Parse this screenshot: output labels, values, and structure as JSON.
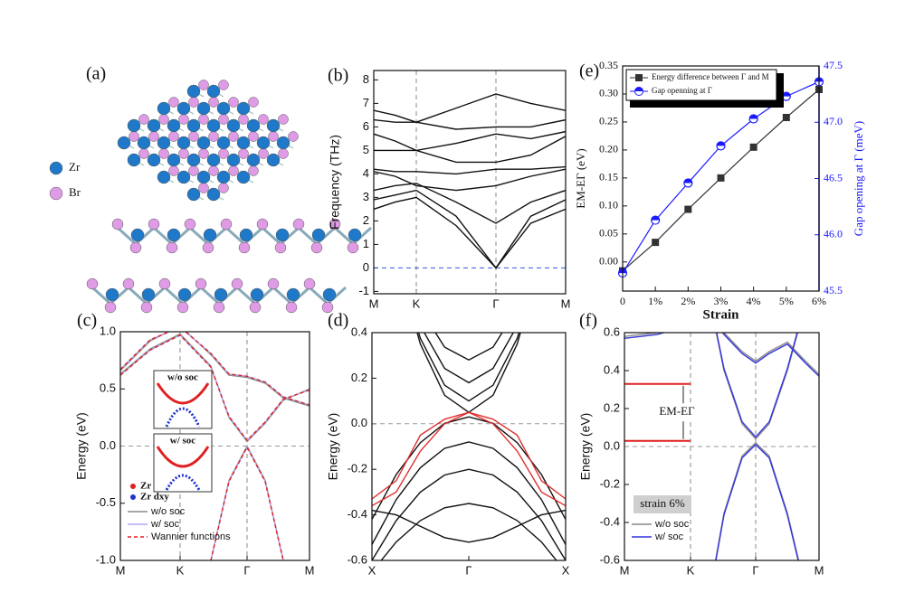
{
  "structure": {
    "label": "(a)",
    "legend": [
      {
        "name": "Zr",
        "color": "#1f78c8"
      },
      {
        "name": "Br",
        "color": "#df9be6"
      }
    ]
  },
  "chart_data": [
    {
      "type": "band",
      "label": "(b)",
      "ylabel": "Frequency (THz)",
      "x": [
        0,
        0.235,
        0.47,
        0.91,
        1.35,
        1.735,
        2.12
      ],
      "xlim": [
        0,
        2.12
      ],
      "xticks": [
        {
          "value": 0,
          "label": "M"
        },
        {
          "value": 0.47,
          "label": "K"
        },
        {
          "value": 1.35,
          "label": "Γ"
        },
        {
          "value": 2.12,
          "label": "M"
        }
      ],
      "ylim": [
        -1.1,
        8.4
      ],
      "yticks": [
        -1,
        0,
        1,
        2,
        3,
        4,
        5,
        6,
        7,
        8
      ],
      "ref_line": 0,
      "ref_color": "#3355dd",
      "vlines": true,
      "series": [
        {
          "color": "#111111",
          "bands": [
            [
              2.5,
              2.8,
              3.0,
              1.8,
              0,
              1.9,
              2.5
            ],
            [
              2.9,
              3.1,
              3.3,
              2.2,
              0,
              2.2,
              2.9
            ],
            [
              3.3,
              3.5,
              3.6,
              2.8,
              1.9,
              2.8,
              3.3
            ],
            [
              4.1,
              3.9,
              3.5,
              3.3,
              3.5,
              3.9,
              4.2
            ],
            [
              4.2,
              4.1,
              4.1,
              4.0,
              4.2,
              4.2,
              4.3
            ],
            [
              5.0,
              5.0,
              5.0,
              4.5,
              4.5,
              4.8,
              5.6
            ],
            [
              5.7,
              5.4,
              5.0,
              5.3,
              5.7,
              5.5,
              5.8
            ],
            [
              6.3,
              6.2,
              6.2,
              5.9,
              6.0,
              6.0,
              6.3
            ],
            [
              6.7,
              6.5,
              6.2,
              6.8,
              7.4,
              7.0,
              6.7
            ]
          ]
        }
      ]
    },
    {
      "type": "band",
      "label": "(c)",
      "ylabel": "Energy (eV)",
      "x": [
        0,
        0.33,
        0.66,
        1.0,
        1.2,
        1.4,
        1.6,
        1.8,
        2.09
      ],
      "xlim": [
        0,
        2.09
      ],
      "xticks": [
        {
          "value": 0,
          "label": "M"
        },
        {
          "value": 0.66,
          "label": "K"
        },
        {
          "value": 1.4,
          "label": "Γ"
        },
        {
          "value": 2.09,
          "label": "M"
        }
      ],
      "ylim": [
        -1,
        1
      ],
      "yticks": [
        {
          "value": -1,
          "label": "-1.0"
        },
        {
          "value": -0.5,
          "label": "-0.5"
        },
        {
          "value": 0,
          "label": "0.0"
        },
        {
          "value": 0.5,
          "label": "0.5"
        },
        {
          "value": 1,
          "label": "1.0"
        }
      ],
      "ref_line": 0,
      "ref_color": "#999999",
      "vlines": true,
      "series": [
        {
          "name": "w/o soc",
          "color": "#8a8a8a",
          "bands": [
            [
              null,
              null,
              null,
              -1.0,
              -0.3,
              0.0,
              -0.3,
              -1.0,
              null
            ],
            [
              0.63,
              0.85,
              0.98,
              0.7,
              0.25,
              0.04,
              0.2,
              0.4,
              0.5
            ],
            [
              0.66,
              0.92,
              1.05,
              0.8,
              0.62,
              0.6,
              0.55,
              0.42,
              0.35
            ]
          ]
        },
        {
          "name": "w/ soc",
          "color": "#b3a9f2",
          "bands": [
            [
              null,
              null,
              null,
              -1.0,
              -0.31,
              -0.01,
              -0.31,
              -1.0,
              null
            ],
            [
              0.62,
              0.84,
              0.97,
              0.69,
              0.26,
              0.05,
              0.21,
              0.41,
              0.49
            ],
            [
              0.67,
              0.93,
              1.04,
              0.81,
              0.63,
              0.61,
              0.56,
              0.43,
              0.36
            ]
          ]
        },
        {
          "name": "Wannier functions",
          "color": "#e02020",
          "dash": true,
          "bands": [
            [
              null,
              null,
              null,
              -1.0,
              -0.31,
              -0.01,
              -0.31,
              -1.0,
              null
            ],
            [
              0.62,
              0.84,
              0.97,
              0.69,
              0.26,
              0.05,
              0.21,
              0.41,
              0.49
            ],
            [
              0.67,
              0.93,
              1.04,
              0.81,
              0.63,
              0.61,
              0.56,
              0.43,
              0.36
            ]
          ]
        }
      ],
      "inset_labels": [
        "w/o soc",
        "w/ soc"
      ],
      "orbitals": [
        {
          "name": "Zr dx²-y²",
          "color": "#e02020"
        },
        {
          "name": "Zr dxy",
          "color": "#2233cc"
        }
      ]
    },
    {
      "type": "band",
      "label": "(d)",
      "ylabel": "Energy (eV)",
      "x": [
        0,
        0.125,
        0.25,
        0.375,
        0.5,
        0.625,
        0.75,
        0.875,
        1
      ],
      "xlim": [
        0,
        1
      ],
      "xticks": [
        {
          "value": 0,
          "label": "X"
        },
        {
          "value": 0.5,
          "label": "Γ"
        },
        {
          "value": 1,
          "label": "X"
        }
      ],
      "ylim": [
        -0.6,
        0.4
      ],
      "yticks": [
        {
          "value": -0.6,
          "label": "-0.6"
        },
        {
          "value": -0.4,
          "label": "-0.4"
        },
        {
          "value": -0.2,
          "label": "-0.2"
        },
        {
          "value": 0,
          "label": "0.0"
        },
        {
          "value": 0.2,
          "label": "0.2"
        },
        {
          "value": 0.4,
          "label": "0.4"
        }
      ],
      "ref_line": 0,
      "ref_color": "#999999",
      "vlines": false,
      "series": [
        {
          "color": "#111111",
          "bands": [
            [
              1.25,
              0.725,
              0.35,
              0.125,
              0.05,
              0.125,
              0.35,
              0.725,
              1.25
            ],
            [
              1.2,
              0.72,
              0.375,
              0.169,
              0.1,
              0.169,
              0.375,
              0.72,
              1.2
            ],
            [
              1.18,
              0.743,
              0.43,
              0.243,
              0.18,
              0.243,
              0.43,
              0.743,
              1.18
            ],
            [
              1.18,
              0.786,
              0.505,
              0.336,
              0.28,
              0.336,
              0.505,
              0.786,
              1.18
            ],
            [
              -0.42,
              -0.223,
              -0.083,
              0.002,
              0.03,
              0.002,
              -0.083,
              -0.223,
              -0.42
            ],
            [
              -0.53,
              -0.333,
              -0.193,
              -0.108,
              -0.08,
              -0.108,
              -0.193,
              -0.333,
              -0.53
            ],
            [
              -0.6,
              -0.425,
              -0.3,
              -0.225,
              -0.2,
              -0.225,
              -0.3,
              -0.425,
              -0.6
            ],
            [
              -0.65,
              -0.519,
              -0.425,
              -0.369,
              -0.35,
              -0.369,
              -0.425,
              -0.519,
              -0.65
            ],
            [
              -0.38,
              -0.4,
              -0.45,
              -0.5,
              -0.52,
              -0.5,
              -0.45,
              -0.4,
              -0.38
            ]
          ]
        },
        {
          "color": "#e03030",
          "bands": [
            [
              -0.36,
              -0.3,
              -0.12,
              0.0,
              0.05,
              0.0,
              -0.12,
              -0.3,
              -0.36
            ],
            [
              -0.33,
              -0.25,
              -0.05,
              0.02,
              0.05,
              0.02,
              -0.05,
              -0.25,
              -0.33
            ]
          ]
        }
      ]
    },
    {
      "type": "line",
      "label": "(e)",
      "xlabel": "Strain",
      "ylabel": "EM-EΓ (eV)",
      "y2label": "Gap opening at Γ (meV)",
      "x": [
        0,
        1,
        2,
        3,
        4,
        5,
        6
      ],
      "xlim": [
        0,
        6
      ],
      "xticks": [
        0,
        {
          "value": 1,
          "label": "1%"
        },
        {
          "value": 2,
          "label": "2%"
        },
        {
          "value": 3,
          "label": "3%"
        },
        {
          "value": 4,
          "label": "4%"
        },
        {
          "value": 5,
          "label": "5%"
        },
        {
          "value": 6,
          "label": "6%"
        }
      ],
      "ylim": [
        -0.052,
        0.35
      ],
      "yticks": [
        {
          "value": 0,
          "label": "0.00"
        },
        {
          "value": 0.05,
          "label": "0.05"
        },
        {
          "value": 0.1,
          "label": "0.10"
        },
        {
          "value": 0.15,
          "label": "0.15"
        },
        {
          "value": 0.2,
          "label": "0.20"
        },
        {
          "value": 0.25,
          "label": "0.25"
        },
        {
          "value": 0.3,
          "label": "0.30"
        },
        {
          "value": 0.35,
          "label": "0.35"
        }
      ],
      "y2lim": [
        45.5,
        47.5
      ],
      "y2ticks": [
        45.5,
        {
          "value": 46,
          "label": "46.0"
        },
        46.5,
        {
          "value": 47,
          "label": "47.0"
        },
        47.5
      ],
      "series": [
        {
          "name": "Energy difference between Γ and M",
          "color": "#333333",
          "marker": "square",
          "values": [
            -0.016,
            0.035,
            0.094,
            0.15,
            0.205,
            0.258,
            0.308
          ]
        },
        {
          "name": "Gap openning at Γ",
          "color": "#1a1aff",
          "marker": "half",
          "axis": "y2",
          "values": [
            45.66,
            46.13,
            46.46,
            46.79,
            47.03,
            47.23,
            47.36
          ]
        }
      ]
    },
    {
      "type": "band",
      "label": "(f)",
      "ylabel": "Energy (eV)",
      "x": [
        0,
        0.36,
        0.73,
        0.95,
        1.1,
        1.3,
        1.45,
        1.6,
        1.8,
        2.0,
        2.15
      ],
      "xlim": [
        0,
        2.15
      ],
      "xticks": [
        {
          "value": 0,
          "label": "M"
        },
        {
          "value": 0.73,
          "label": "K"
        },
        {
          "value": 1.45,
          "label": "Γ"
        },
        {
          "value": 2.15,
          "label": "M"
        }
      ],
      "ylim": [
        -0.6,
        0.6
      ],
      "yticks": [
        {
          "value": -0.6,
          "label": "-0.6"
        },
        {
          "value": -0.4,
          "label": "-0.4"
        },
        {
          "value": -0.2,
          "label": "-0.2"
        },
        {
          "value": 0,
          "label": "0.0"
        },
        {
          "value": 0.2,
          "label": "0.2"
        },
        {
          "value": 0.4,
          "label": "0.4"
        },
        {
          "value": 0.6,
          "label": "0.6"
        }
      ],
      "ref_line": 0,
      "ref_color": "#999999",
      "vlines": true,
      "series": [
        {
          "name": "w/o soc",
          "color": "#8a8a8a",
          "bands": [
            [
              null,
              null,
              null,
              -0.75,
              -0.35,
              -0.05,
              0.02,
              -0.05,
              -0.35,
              -0.75,
              null
            ],
            [
              null,
              null,
              null,
              0.75,
              0.4,
              0.12,
              0.04,
              0.12,
              0.4,
              0.75,
              null
            ],
            [
              0.58,
              0.6,
              0.65,
              0.7,
              0.6,
              0.5,
              0.45,
              0.5,
              0.55,
              0.45,
              0.38
            ]
          ]
        },
        {
          "name": "w/ soc",
          "color": "#3333dd",
          "bands": [
            [
              null,
              null,
              null,
              -0.76,
              -0.36,
              -0.06,
              0.01,
              -0.06,
              -0.36,
              -0.76,
              null
            ],
            [
              null,
              null,
              null,
              0.76,
              0.41,
              0.13,
              0.05,
              0.13,
              0.41,
              0.76,
              null
            ],
            [
              0.57,
              0.59,
              0.64,
              0.69,
              0.59,
              0.49,
              0.44,
              0.49,
              0.54,
              0.44,
              0.37
            ]
          ]
        }
      ],
      "annotation": {
        "text": "EM-EΓ",
        "levels": [
          0.33,
          0.03
        ]
      },
      "note": "strain 6%"
    }
  ]
}
